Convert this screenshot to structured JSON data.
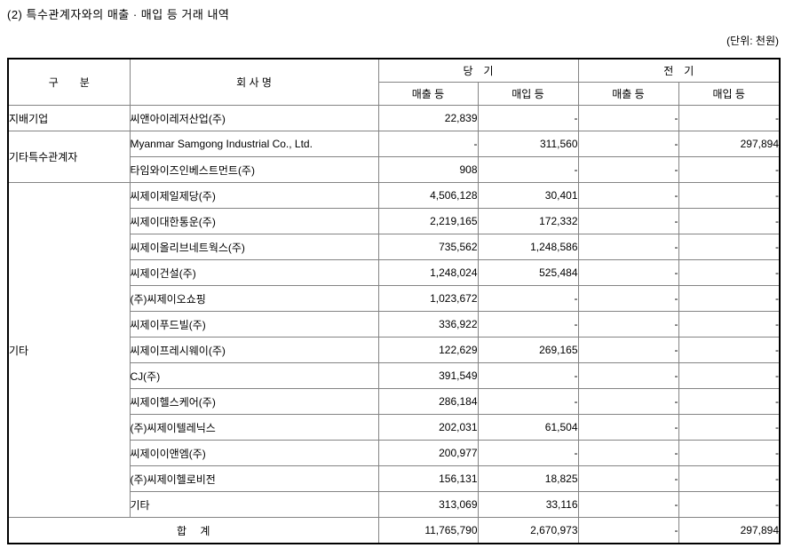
{
  "title": "(2) 특수관계자와의 매출 · 매입 등 거래 내역",
  "unit_note": "(단위: 천원)",
  "table": {
    "headers": {
      "category": "구　　분",
      "company": "회 사 명",
      "current_period": "당　기",
      "prior_period": "전　기",
      "sales": "매출 등",
      "purchases": "매입 등"
    },
    "groups": [
      {
        "category": "지배기업",
        "rows": [
          {
            "company": "씨앤아이레저산업(주)",
            "values": [
              "22,839",
              "-",
              "-",
              "-"
            ]
          }
        ]
      },
      {
        "category": "기타특수관계자",
        "rows": [
          {
            "company": "Myanmar Samgong Industrial Co., Ltd.",
            "values": [
              "-",
              "311,560",
              "-",
              "297,894"
            ]
          },
          {
            "company": "타임와이즈인베스트먼트(주)",
            "values": [
              "908",
              "-",
              "-",
              "-"
            ]
          }
        ]
      },
      {
        "category": "기타",
        "rows": [
          {
            "company": "씨제이제일제당(주)",
            "values": [
              "4,506,128",
              "30,401",
              "-",
              "-"
            ]
          },
          {
            "company": "씨제이대한통운(주)",
            "values": [
              "2,219,165",
              "172,332",
              "-",
              "-"
            ]
          },
          {
            "company": "씨제이올리브네트웍스(주)",
            "values": [
              "735,562",
              "1,248,586",
              "-",
              "-"
            ]
          },
          {
            "company": "씨제이건설(주)",
            "values": [
              "1,248,024",
              "525,484",
              "-",
              "-"
            ]
          },
          {
            "company": "(주)씨제이오쇼핑",
            "values": [
              "1,023,672",
              "-",
              "-",
              "-"
            ]
          },
          {
            "company": "씨제이푸드빌(주)",
            "values": [
              "336,922",
              "-",
              "-",
              "-"
            ]
          },
          {
            "company": "씨제이프레시웨이(주)",
            "values": [
              "122,629",
              "269,165",
              "-",
              "-"
            ]
          },
          {
            "company": "CJ(주)",
            "values": [
              "391,549",
              "-",
              "-",
              "-"
            ]
          },
          {
            "company": "씨제이헬스케어(주)",
            "values": [
              "286,184",
              "-",
              "-",
              "-"
            ]
          },
          {
            "company": "(주)씨제이텔레닉스",
            "values": [
              "202,031",
              "61,504",
              "-",
              "-"
            ]
          },
          {
            "company": "씨제이이앤엠(주)",
            "values": [
              "200,977",
              "-",
              "-",
              "-"
            ]
          },
          {
            "company": "(주)씨제이헬로비전",
            "values": [
              "156,131",
              "18,825",
              "-",
              "-"
            ]
          },
          {
            "company": "기타",
            "values": [
              "313,069",
              "33,116",
              "-",
              "-"
            ]
          }
        ]
      }
    ],
    "total": {
      "label": "합　 계",
      "values": [
        "11,765,790",
        "2,670,973",
        "-",
        "297,894"
      ]
    }
  }
}
